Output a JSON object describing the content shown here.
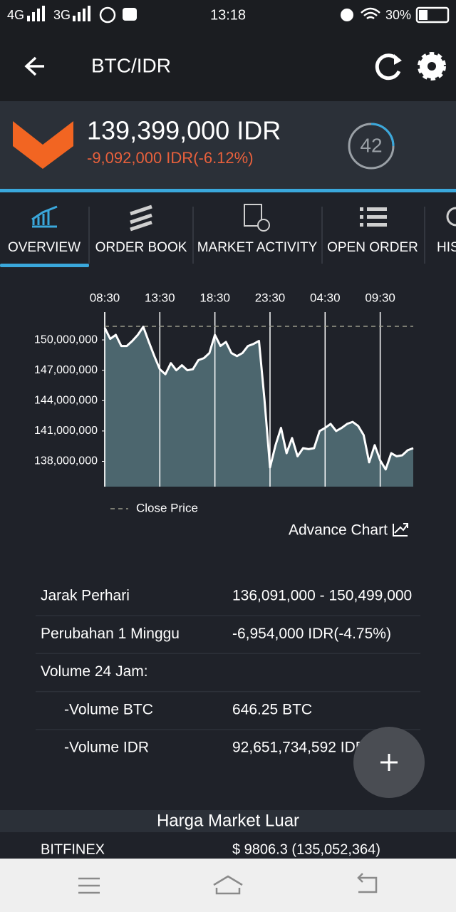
{
  "status_bar": {
    "network_1": "4G",
    "network_2": "3G",
    "time": "13:18",
    "battery": "30%"
  },
  "app_bar": {
    "title": "BTC/IDR"
  },
  "ticker": {
    "price": "139,399,000 IDR",
    "change": "-9,092,000 IDR(-6.12%)",
    "badge": "42"
  },
  "tabs": [
    "OVERVIEW",
    "ORDER BOOK",
    "MARKET ACTIVITY",
    "OPEN ORDER",
    "HIS"
  ],
  "chart_data": {
    "type": "area",
    "color": "#4c666e",
    "line_color": "#ffffff",
    "categories": [
      "08:30",
      null,
      null,
      null,
      null,
      null,
      null,
      null,
      null,
      null,
      "13:30",
      null,
      null,
      null,
      null,
      null,
      null,
      null,
      null,
      null,
      "18:30",
      null,
      null,
      null,
      null,
      null,
      null,
      null,
      null,
      null,
      "23:30",
      null,
      null,
      null,
      null,
      null,
      null,
      null,
      null,
      null,
      "04:30",
      null,
      null,
      null,
      null,
      null,
      null,
      null,
      null,
      null,
      "09:30",
      null,
      null,
      null,
      null,
      null,
      null
    ],
    "values": [
      151200000,
      150100000,
      150500000,
      149400000,
      149400000,
      149900000,
      150500000,
      151300000,
      149800000,
      148400000,
      147100000,
      146600000,
      147700000,
      147000000,
      147500000,
      147000000,
      147100000,
      148000000,
      148200000,
      148700000,
      150500000,
      149400000,
      149800000,
      148700000,
      148400000,
      148700000,
      149400000,
      149600000,
      149900000,
      144100000,
      137400000,
      139600000,
      141300000,
      138800000,
      140300000,
      138500000,
      139300000,
      139200000,
      139300000,
      141000000,
      141300000,
      141700000,
      141000000,
      141300000,
      141700000,
      141900000,
      141500000,
      140600000,
      137900000,
      139600000,
      138100000,
      137200000,
      138800000,
      138500000,
      138600000,
      139100000,
      139300000
    ],
    "reference_line": {
      "name": "Close Price",
      "value": 151340000,
      "color": "#9a9a8a"
    },
    "ylim": [
      135500000,
      152750000
    ],
    "yticks": [
      {
        "value": 138000000,
        "label": "138,000,000"
      },
      {
        "value": 141000000,
        "label": "141,000,000"
      },
      {
        "value": 144000000,
        "label": "144,000,000"
      },
      {
        "value": 147000000,
        "label": "147,000,000"
      },
      {
        "value": 150000000,
        "label": "150,000,000"
      }
    ],
    "grid": true
  },
  "advance_chart": "Advance Chart",
  "stats": [
    {
      "label": "Jarak Perhari",
      "value": "136,091,000 - 150,499,000"
    },
    {
      "label": "Perubahan 1 Minggu",
      "value": "-6,954,000 IDR(-4.75%)"
    },
    {
      "label": "Volume 24 Jam:"
    },
    {
      "label": "-Volume BTC",
      "value": "646.25 BTC"
    },
    {
      "label": "-Volume IDR",
      "value": "92,651,734,592 IDR"
    }
  ],
  "market": {
    "title": "Harga Market Luar",
    "rows": [
      {
        "name": "BITFINEX",
        "value": "$ 9806.3 (135,052,364)"
      }
    ]
  }
}
